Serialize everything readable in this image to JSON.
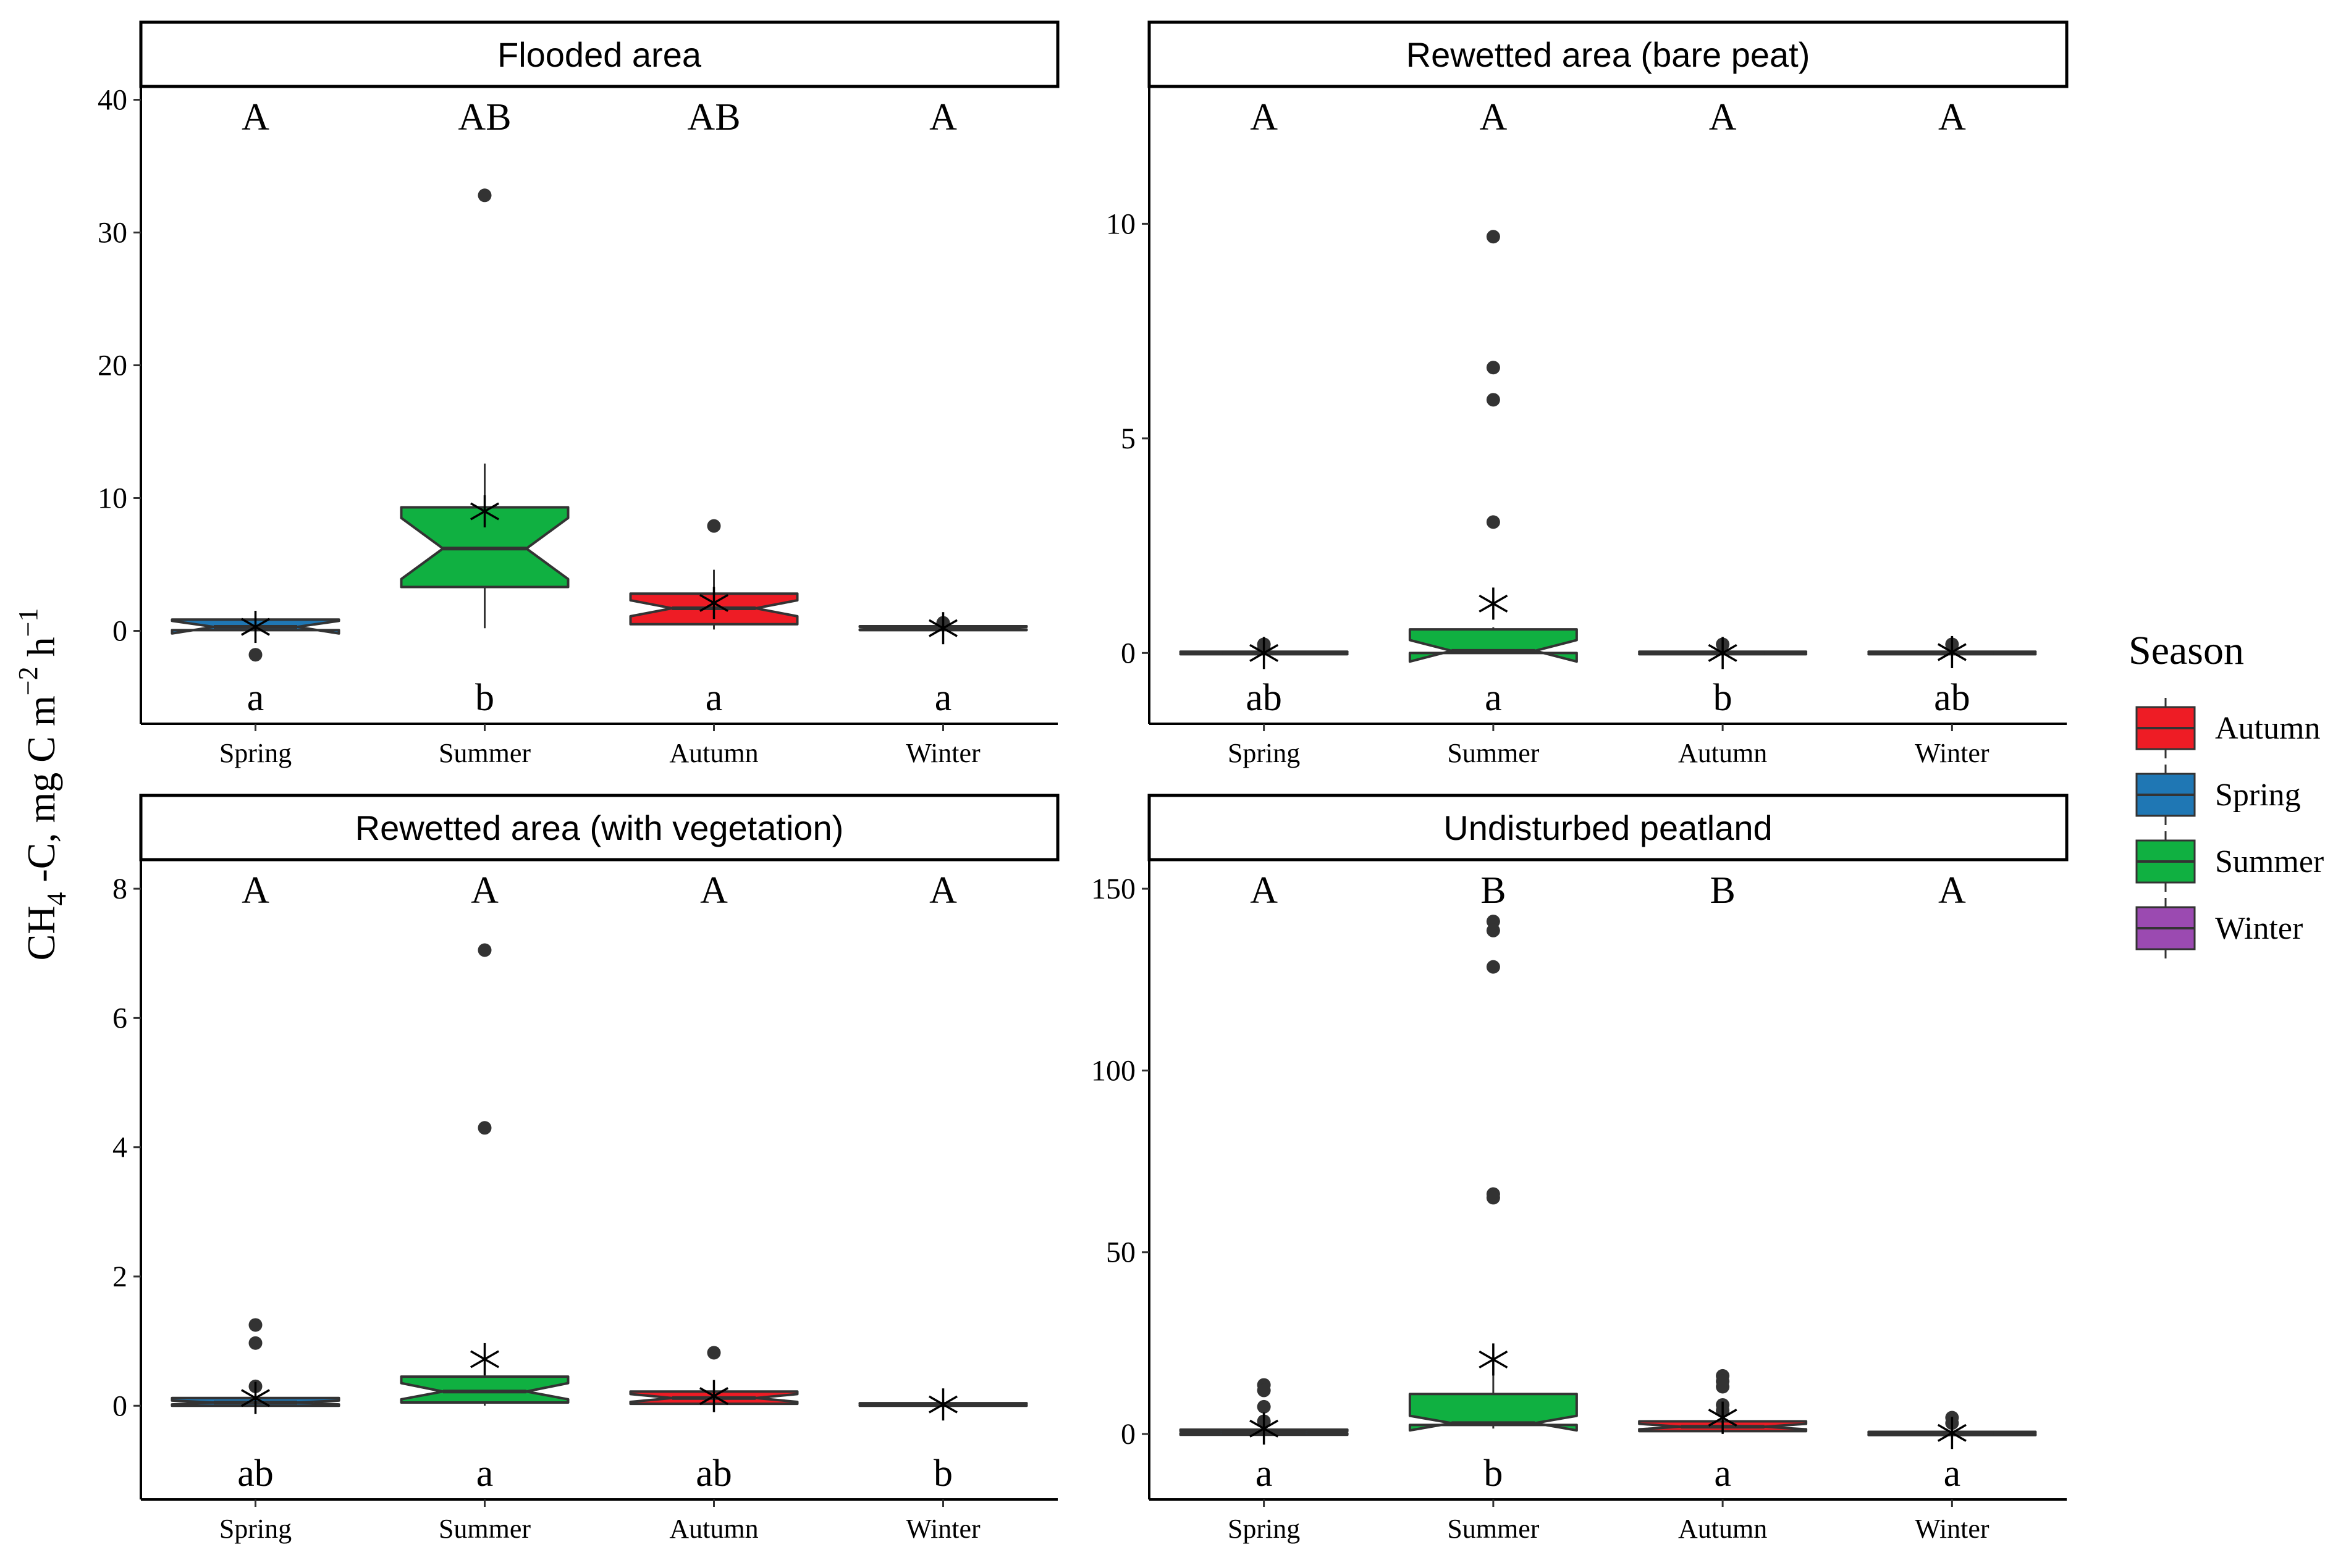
{
  "chart_data": [
    {
      "type": "box",
      "title": "Flooded area",
      "categories": [
        "Spring",
        "Summer",
        "Autumn",
        "Winter"
      ],
      "y_ticks": [
        0,
        10,
        20,
        30,
        40
      ],
      "ylim": [
        -7,
        41
      ],
      "letters_top": [
        "A",
        "AB",
        "AB",
        "A"
      ],
      "letters_bottom": [
        "a",
        "b",
        "a",
        "a"
      ],
      "boxes": [
        {
          "season": "Spring",
          "q1": 0.05,
          "median": 0.3,
          "q3": 0.85,
          "notch_lo": -0.2,
          "notch_hi": 0.75,
          "whisk_lo": -0.3,
          "whisk_hi": 0.9,
          "mean": 0.3,
          "outliers": [
            -1.8
          ]
        },
        {
          "season": "Summer",
          "q1": 3.3,
          "median": 6.2,
          "q3": 9.3,
          "notch_lo": 3.9,
          "notch_hi": 8.5,
          "whisk_lo": 0.2,
          "whisk_hi": 12.6,
          "mean": 9.0,
          "outliers": [
            32.8
          ]
        },
        {
          "season": "Autumn",
          "q1": 0.5,
          "median": 1.7,
          "q3": 2.8,
          "notch_lo": 1.1,
          "notch_hi": 2.3,
          "whisk_lo": 0.1,
          "whisk_hi": 4.6,
          "mean": 2.1,
          "outliers": [
            7.9
          ]
        },
        {
          "season": "Winter",
          "q1": 0.05,
          "median": 0.2,
          "q3": 0.35,
          "notch_lo": 0.1,
          "notch_hi": 0.3,
          "whisk_lo": -0.1,
          "whisk_hi": 0.9,
          "mean": 0.2,
          "outliers": [
            0.6
          ]
        }
      ]
    },
    {
      "type": "box",
      "title": "Rewetted area (bare peat)",
      "categories": [
        "Spring",
        "Summer",
        "Autumn",
        "Winter"
      ],
      "y_ticks": [
        0,
        5,
        10
      ],
      "ylim": [
        -1.65,
        13.2
      ],
      "letters_top": [
        "A",
        "A",
        "A",
        "A"
      ],
      "letters_bottom": [
        "ab",
        "a",
        "b",
        "ab"
      ],
      "boxes": [
        {
          "season": "Spring",
          "q1": -0.03,
          "median": 0.0,
          "q3": 0.03,
          "notch_lo": -0.02,
          "notch_hi": 0.02,
          "whisk_lo": -0.05,
          "whisk_hi": 0.1,
          "mean": 0.0,
          "outliers": [
            0.2,
            0.1
          ]
        },
        {
          "season": "Summer",
          "q1": 0.0,
          "median": 0.05,
          "q3": 0.55,
          "notch_lo": -0.2,
          "notch_hi": 0.3,
          "whisk_lo": 0.0,
          "whisk_hi": 0.6,
          "mean": 1.15,
          "outliers": [
            9.7,
            6.65,
            5.9,
            3.05
          ]
        },
        {
          "season": "Autumn",
          "q1": -0.03,
          "median": 0.0,
          "q3": 0.03,
          "notch_lo": -0.02,
          "notch_hi": 0.02,
          "whisk_lo": -0.05,
          "whisk_hi": 0.1,
          "mean": 0.0,
          "outliers": [
            0.2
          ]
        },
        {
          "season": "Winter",
          "q1": -0.03,
          "median": 0.0,
          "q3": 0.03,
          "notch_lo": -0.02,
          "notch_hi": 0.02,
          "whisk_lo": -0.05,
          "whisk_hi": 0.1,
          "mean": 0.02,
          "outliers": [
            0.2
          ]
        }
      ]
    },
    {
      "type": "box",
      "title": "Rewetted area (with vegetation)",
      "categories": [
        "Spring",
        "Summer",
        "Autumn",
        "Winter"
      ],
      "y_ticks": [
        0,
        2,
        4,
        6,
        8
      ],
      "ylim": [
        -1.45,
        8.45
      ],
      "letters_top": [
        "A",
        "A",
        "A",
        "A"
      ],
      "letters_bottom": [
        "ab",
        "a",
        "ab",
        "b"
      ],
      "boxes": [
        {
          "season": "Spring",
          "q1": 0.0,
          "median": 0.05,
          "q3": 0.12,
          "notch_lo": 0.02,
          "notch_hi": 0.08,
          "whisk_lo": -0.02,
          "whisk_hi": 0.25,
          "mean": 0.12,
          "outliers": [
            1.25,
            0.97,
            0.3
          ]
        },
        {
          "season": "Summer",
          "q1": 0.05,
          "median": 0.22,
          "q3": 0.45,
          "notch_lo": 0.1,
          "notch_hi": 0.35,
          "whisk_lo": 0.0,
          "whisk_hi": 0.5,
          "mean": 0.72,
          "outliers": [
            7.05,
            4.3
          ]
        },
        {
          "season": "Autumn",
          "q1": 0.03,
          "median": 0.12,
          "q3": 0.22,
          "notch_lo": 0.06,
          "notch_hi": 0.18,
          "whisk_lo": 0.0,
          "whisk_hi": 0.3,
          "mean": 0.15,
          "outliers": [
            0.82
          ]
        },
        {
          "season": "Winter",
          "q1": 0.0,
          "median": 0.02,
          "q3": 0.04,
          "notch_lo": 0.01,
          "notch_hi": 0.03,
          "whisk_lo": 0.0,
          "whisk_hi": 0.06,
          "mean": 0.02,
          "outliers": []
        }
      ]
    },
    {
      "type": "box",
      "title": "Undisturbed peatland",
      "categories": [
        "Spring",
        "Summer",
        "Autumn",
        "Winter"
      ],
      "y_ticks": [
        0,
        50,
        100,
        150
      ],
      "ylim": [
        -18,
        158
      ],
      "letters_top": [
        "A",
        "B",
        "B",
        "A"
      ],
      "letters_bottom": [
        "a",
        "b",
        "a",
        "a"
      ],
      "boxes": [
        {
          "season": "Spring",
          "q1": -0.2,
          "median": 0.5,
          "q3": 1.2,
          "notch_lo": 0.2,
          "notch_hi": 0.8,
          "whisk_lo": -0.5,
          "whisk_hi": 2.0,
          "mean": 1.5,
          "outliers": [
            13.5,
            12.0,
            7.5,
            3.5
          ]
        },
        {
          "season": "Summer",
          "q1": 2.5,
          "median": 3.0,
          "q3": 11.0,
          "notch_lo": 1.0,
          "notch_hi": 5.0,
          "whisk_lo": 1.5,
          "whisk_hi": 21.0,
          "mean": 20.5,
          "outliers": [
            141.0,
            138.5,
            128.5,
            66.0,
            65.0
          ]
        },
        {
          "season": "Autumn",
          "q1": 0.8,
          "median": 2.0,
          "q3": 3.5,
          "notch_lo": 1.3,
          "notch_hi": 2.8,
          "whisk_lo": 0.0,
          "whisk_hi": 4.0,
          "mean": 4.5,
          "outliers": [
            16.0,
            14.5,
            13.0,
            8.0,
            6.5
          ]
        },
        {
          "season": "Winter",
          "q1": -0.3,
          "median": 0.2,
          "q3": 0.6,
          "notch_lo": 0.0,
          "notch_hi": 0.4,
          "whisk_lo": -0.5,
          "whisk_hi": 1.0,
          "mean": 0.3,
          "outliers": [
            4.5,
            3.0
          ]
        }
      ]
    }
  ],
  "ylabel": {
    "main": "CH",
    "sub": "4",
    "middle": " -C, mg C m",
    "sup1": "−2",
    "h": " h",
    "sup2": "−1"
  },
  "legend": {
    "title": "Season",
    "items": [
      {
        "label": "Autumn",
        "color": "#ee1c25"
      },
      {
        "label": "Spring",
        "color": "#1f77b4"
      },
      {
        "label": "Summer",
        "color": "#10b041"
      },
      {
        "label": "Winter",
        "color": "#9b4ab1"
      }
    ]
  },
  "colors": {
    "Autumn": "#ee1c25",
    "Spring": "#1f77b4",
    "Summer": "#10b041",
    "Winter": "#9b4ab1",
    "outline": "#333333",
    "outlier": "#333333"
  }
}
